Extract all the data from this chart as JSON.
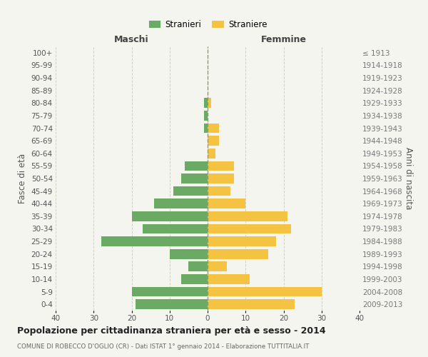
{
  "age_groups": [
    "100+",
    "95-99",
    "90-94",
    "85-89",
    "80-84",
    "75-79",
    "70-74",
    "65-69",
    "60-64",
    "55-59",
    "50-54",
    "45-49",
    "40-44",
    "35-39",
    "30-34",
    "25-29",
    "20-24",
    "15-19",
    "10-14",
    "5-9",
    "0-4"
  ],
  "birth_years": [
    "≤ 1913",
    "1914-1918",
    "1919-1923",
    "1924-1928",
    "1929-1933",
    "1934-1938",
    "1939-1943",
    "1944-1948",
    "1949-1953",
    "1954-1958",
    "1959-1963",
    "1964-1968",
    "1969-1973",
    "1974-1978",
    "1979-1983",
    "1984-1988",
    "1989-1993",
    "1994-1998",
    "1999-2003",
    "2004-2008",
    "2009-2013"
  ],
  "males": [
    0,
    0,
    0,
    0,
    1,
    1,
    1,
    0,
    0,
    6,
    7,
    9,
    14,
    20,
    17,
    28,
    10,
    5,
    7,
    20,
    19
  ],
  "females": [
    0,
    0,
    0,
    0,
    1,
    0,
    3,
    3,
    2,
    7,
    7,
    6,
    10,
    21,
    22,
    18,
    16,
    5,
    11,
    30,
    23
  ],
  "male_color": "#6aaa64",
  "female_color": "#f5c342",
  "bar_height": 0.78,
  "xlim": [
    -40,
    40
  ],
  "xlabel_left": "Maschi",
  "xlabel_right": "Femmine",
  "ylabel_left": "Fasce di età",
  "ylabel_right": "Anni di nascita",
  "xticks": [
    -40,
    -30,
    -20,
    -10,
    0,
    10,
    20,
    30,
    40
  ],
  "xticklabels": [
    "40",
    "30",
    "20",
    "10",
    "0",
    "10",
    "20",
    "30",
    "40"
  ],
  "legend_male": "Stranieri",
  "legend_female": "Straniere",
  "title": "Popolazione per cittadinanza straniera per età e sesso - 2014",
  "subtitle": "COMUNE DI ROBECCO D'OGLIO (CR) - Dati ISTAT 1° gennaio 2014 - Elaborazione TUTTITALIA.IT",
  "bg_color": "#f5f5f0",
  "grid_color": "#d0d0c8",
  "dashed_line_color": "#999966"
}
